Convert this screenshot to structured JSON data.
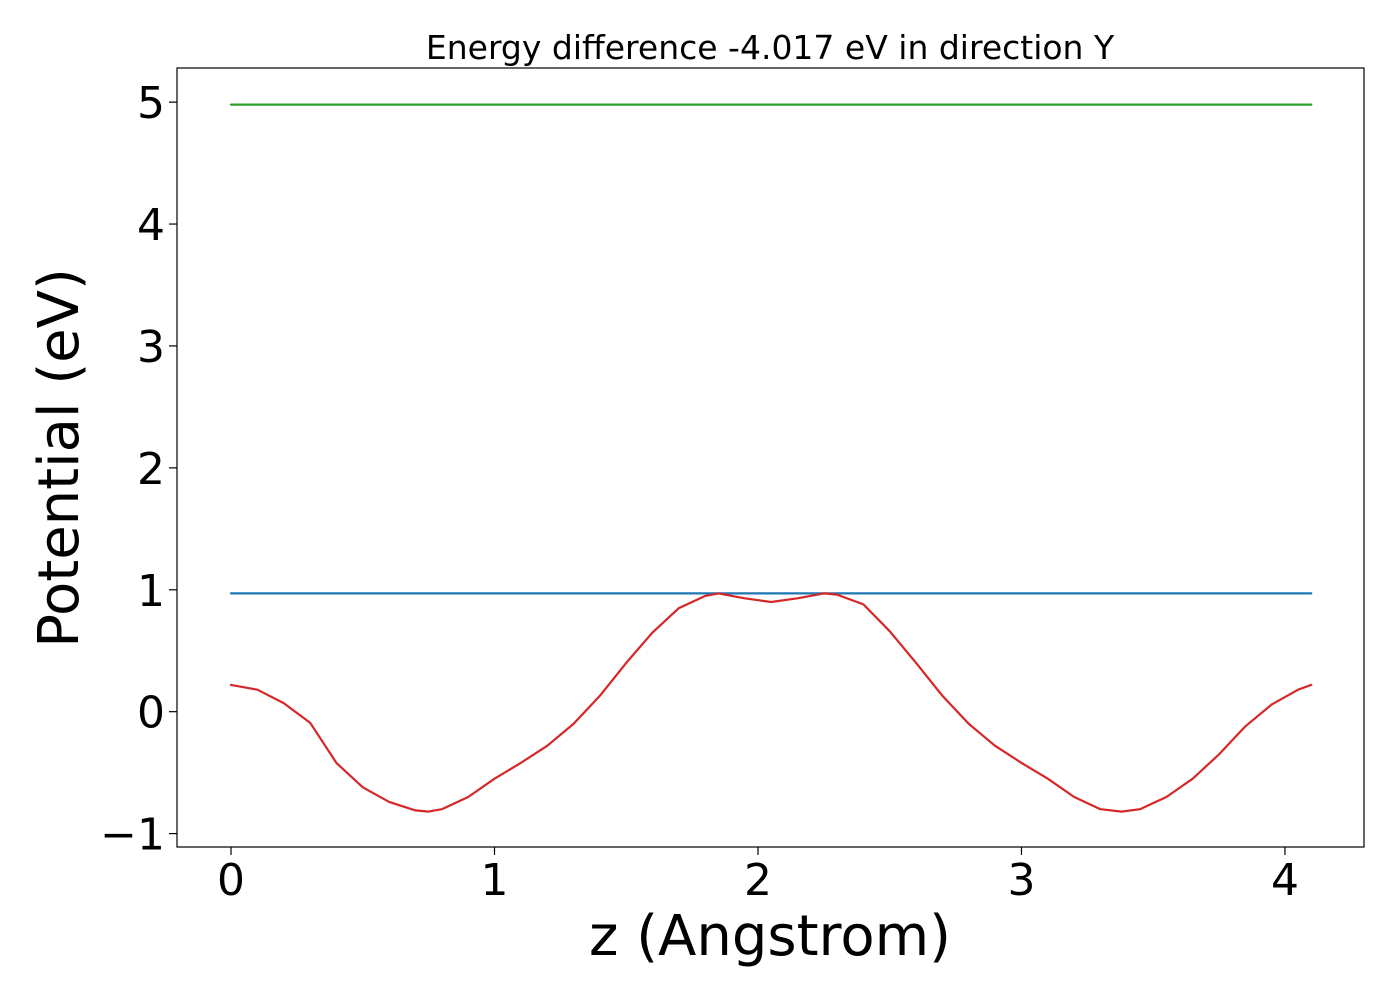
{
  "chart_data": {
    "type": "line",
    "title": "Energy difference -4.017 eV in direction Y",
    "xlabel": "z (Angstrom)",
    "ylabel": "Potential (eV)",
    "xlim": [
      -0.205,
      4.3
    ],
    "ylim": [
      -1.11,
      5.28
    ],
    "xticks": [
      0,
      1,
      2,
      3,
      4
    ],
    "xtick_labels": [
      "0",
      "1",
      "2",
      "3",
      "4"
    ],
    "yticks": [
      -1,
      0,
      1,
      2,
      3,
      4,
      5
    ],
    "ytick_labels": [
      "−1",
      "0",
      "1",
      "2",
      "3",
      "4",
      "5"
    ],
    "grid": false,
    "series": [
      {
        "color": "#2ca02c",
        "x": [
          0,
          4.1
        ],
        "y": [
          4.98,
          4.98
        ]
      },
      {
        "color": "#1f77b4",
        "x": [
          0,
          4.1
        ],
        "y": [
          0.97,
          0.97
        ]
      },
      {
        "color": "#d62728",
        "x": [
          0,
          0.1,
          0.2,
          0.3,
          0.4,
          0.5,
          0.6,
          0.7,
          0.75,
          0.8,
          0.9,
          1.0,
          1.1,
          1.2,
          1.3,
          1.4,
          1.5,
          1.6,
          1.7,
          1.8,
          1.85,
          1.95,
          2.05,
          2.15,
          2.25,
          2.3,
          2.4,
          2.5,
          2.6,
          2.7,
          2.8,
          2.9,
          3.0,
          3.1,
          3.2,
          3.3,
          3.38,
          3.45,
          3.55,
          3.65,
          3.75,
          3.85,
          3.95,
          4.05,
          4.1
        ],
        "y": [
          0.22,
          0.18,
          0.07,
          -0.09,
          -0.42,
          -0.62,
          -0.74,
          -0.81,
          -0.82,
          -0.8,
          -0.7,
          -0.55,
          -0.42,
          -0.28,
          -0.1,
          0.13,
          0.4,
          0.65,
          0.85,
          0.95,
          0.97,
          0.93,
          0.9,
          0.93,
          0.97,
          0.96,
          0.88,
          0.66,
          0.4,
          0.13,
          -0.1,
          -0.28,
          -0.42,
          -0.55,
          -0.7,
          -0.8,
          -0.82,
          -0.8,
          -0.7,
          -0.55,
          -0.35,
          -0.12,
          0.06,
          0.18,
          0.22
        ]
      }
    ]
  }
}
